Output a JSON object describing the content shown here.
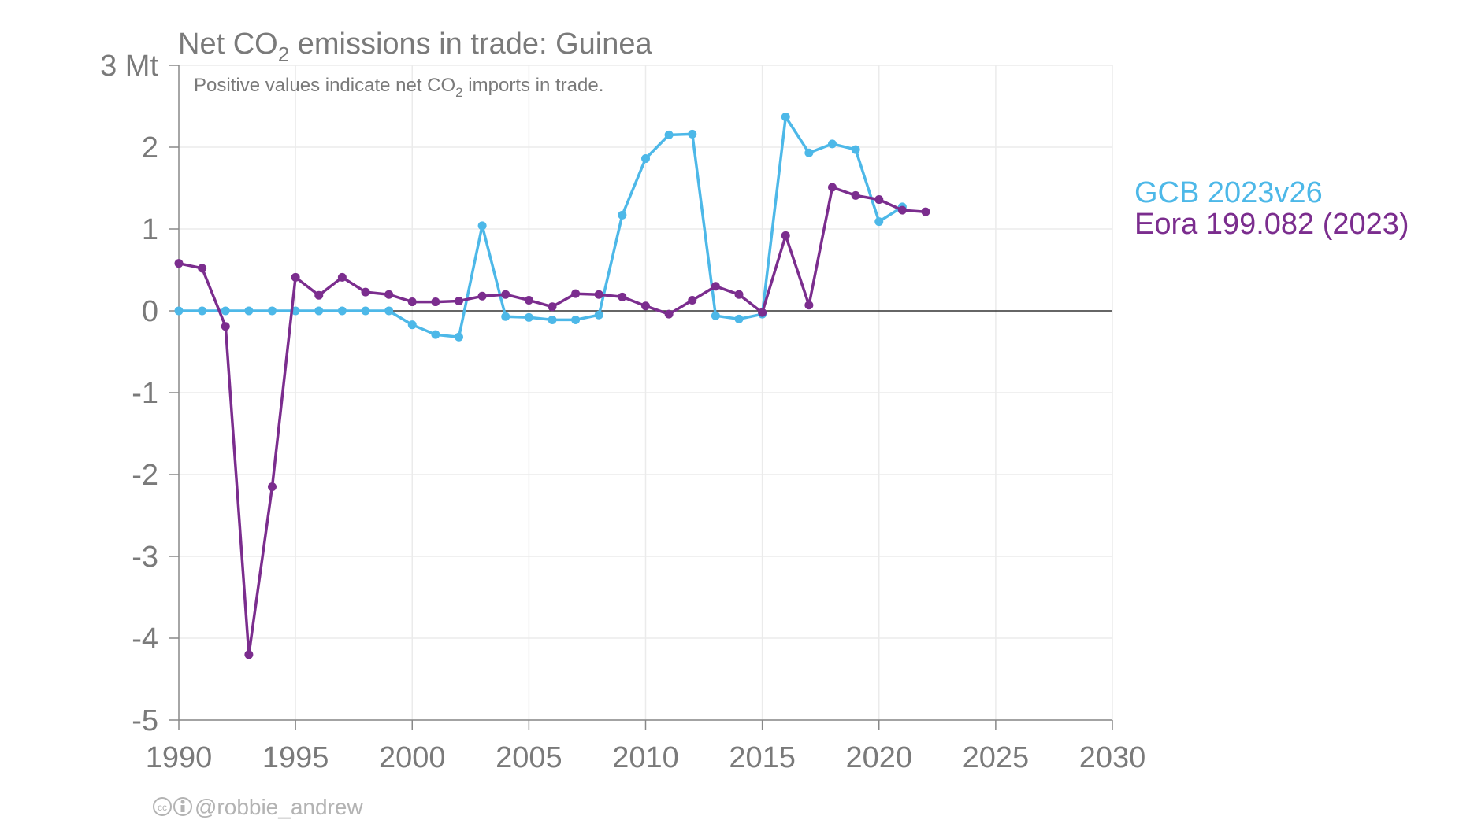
{
  "chart_data": {
    "type": "line",
    "title": {
      "prefix": "Net CO",
      "sub": "2",
      "suffix": " emissions in trade: Guinea"
    },
    "subtitle": {
      "prefix": "Positive values indicate net CO",
      "sub": "2",
      "suffix": " imports in trade."
    },
    "xlim": [
      1990,
      2030
    ],
    "ylim": [
      -5,
      3
    ],
    "x_ticks": [
      1990,
      1995,
      2000,
      2005,
      2010,
      2015,
      2020,
      2025,
      2030
    ],
    "y_ticks": [
      {
        "value": 3,
        "label": "3 Mt"
      },
      {
        "value": 2,
        "label": "2"
      },
      {
        "value": 1,
        "label": "1"
      },
      {
        "value": 0,
        "label": "0"
      },
      {
        "value": -1,
        "label": "-1"
      },
      {
        "value": -2,
        "label": "-2"
      },
      {
        "value": -3,
        "label": "-3"
      },
      {
        "value": -4,
        "label": "-4"
      },
      {
        "value": -5,
        "label": "-5"
      }
    ],
    "grid": true,
    "legend_position": "right",
    "series": [
      {
        "name": "GCB 2023v26",
        "color": "#4db8e8",
        "x": [
          1990,
          1991,
          1992,
          1993,
          1994,
          1995,
          1996,
          1997,
          1998,
          1999,
          2000,
          2001,
          2002,
          2003,
          2004,
          2005,
          2006,
          2007,
          2008,
          2009,
          2010,
          2011,
          2012,
          2013,
          2014,
          2015,
          2016,
          2017,
          2018,
          2019,
          2020,
          2021
        ],
        "y": [
          0,
          0,
          0,
          0,
          0,
          0,
          0,
          0,
          0,
          0,
          -0.17,
          -0.29,
          -0.32,
          1.04,
          -0.07,
          -0.08,
          -0.11,
          -0.11,
          -0.05,
          1.17,
          1.86,
          2.15,
          2.16,
          -0.06,
          -0.1,
          -0.04,
          2.37,
          1.93,
          2.04,
          1.97,
          1.09,
          1.27
        ]
      },
      {
        "name": "Eora 199.082 (2023)",
        "color": "#7b2d8e",
        "x": [
          1990,
          1991,
          1992,
          1993,
          1994,
          1995,
          1996,
          1997,
          1998,
          1999,
          2000,
          2001,
          2002,
          2003,
          2004,
          2005,
          2006,
          2007,
          2008,
          2009,
          2010,
          2011,
          2012,
          2013,
          2014,
          2015,
          2016,
          2017,
          2018,
          2019,
          2020,
          2021,
          2022
        ],
        "y": [
          0.58,
          0.52,
          -0.19,
          -4.2,
          -2.15,
          0.41,
          0.19,
          0.41,
          0.23,
          0.2,
          0.11,
          0.11,
          0.12,
          0.18,
          0.2,
          0.13,
          0.05,
          0.21,
          0.2,
          0.17,
          0.06,
          -0.04,
          0.13,
          0.3,
          0.2,
          -0.02,
          0.92,
          0.07,
          1.51,
          1.41,
          1.36,
          1.23,
          1.21
        ]
      }
    ]
  },
  "credit": "@robbie_andrew"
}
